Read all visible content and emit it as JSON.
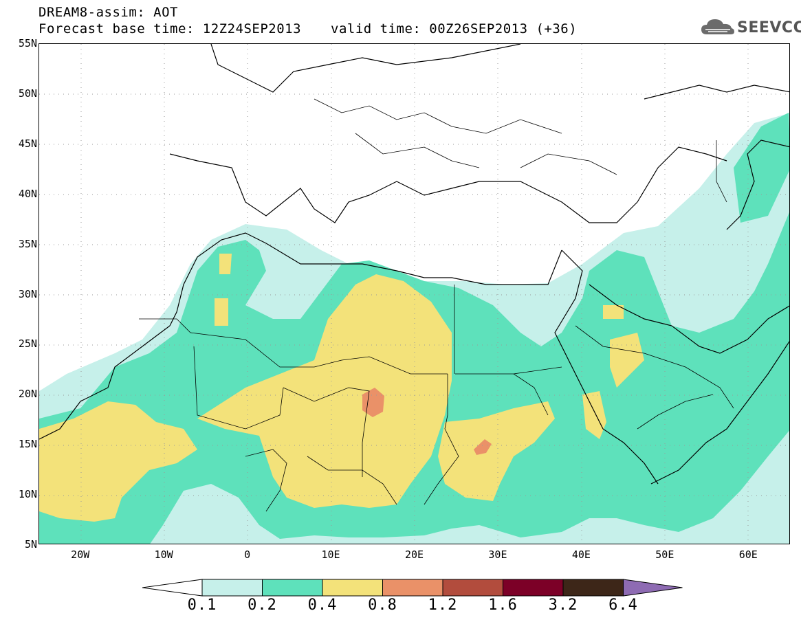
{
  "title_line1": "DREAM8-assim: AOT",
  "title_line2a": "Forecast base time: 12Z24SEP2013",
  "title_line2b": "valid time: 00Z26SEP2013 (+36)",
  "logo_text": "SEEVCCC",
  "lat_labels": [
    "55N",
    "50N",
    "45N",
    "40N",
    "35N",
    "30N",
    "25N",
    "20N",
    "15N",
    "10N",
    "5N"
  ],
  "lon_labels": [
    "20W",
    "10W",
    "0",
    "10E",
    "20E",
    "30E",
    "40E",
    "50E",
    "60E"
  ],
  "colorbar": {
    "ticks": [
      "0.1",
      "0.2",
      "0.4",
      "0.8",
      "1.2",
      "1.6",
      "3.2",
      "6.4"
    ],
    "colors": [
      "#c6f0ea",
      "#5ee1bb",
      "#f3e27a",
      "#ea9168",
      "#b24c3d",
      "#7c0027",
      "#3d2618",
      "#8e6bb3"
    ]
  },
  "map_extent": {
    "lon": [
      -25,
      65
    ],
    "lat": [
      5,
      55
    ]
  }
}
